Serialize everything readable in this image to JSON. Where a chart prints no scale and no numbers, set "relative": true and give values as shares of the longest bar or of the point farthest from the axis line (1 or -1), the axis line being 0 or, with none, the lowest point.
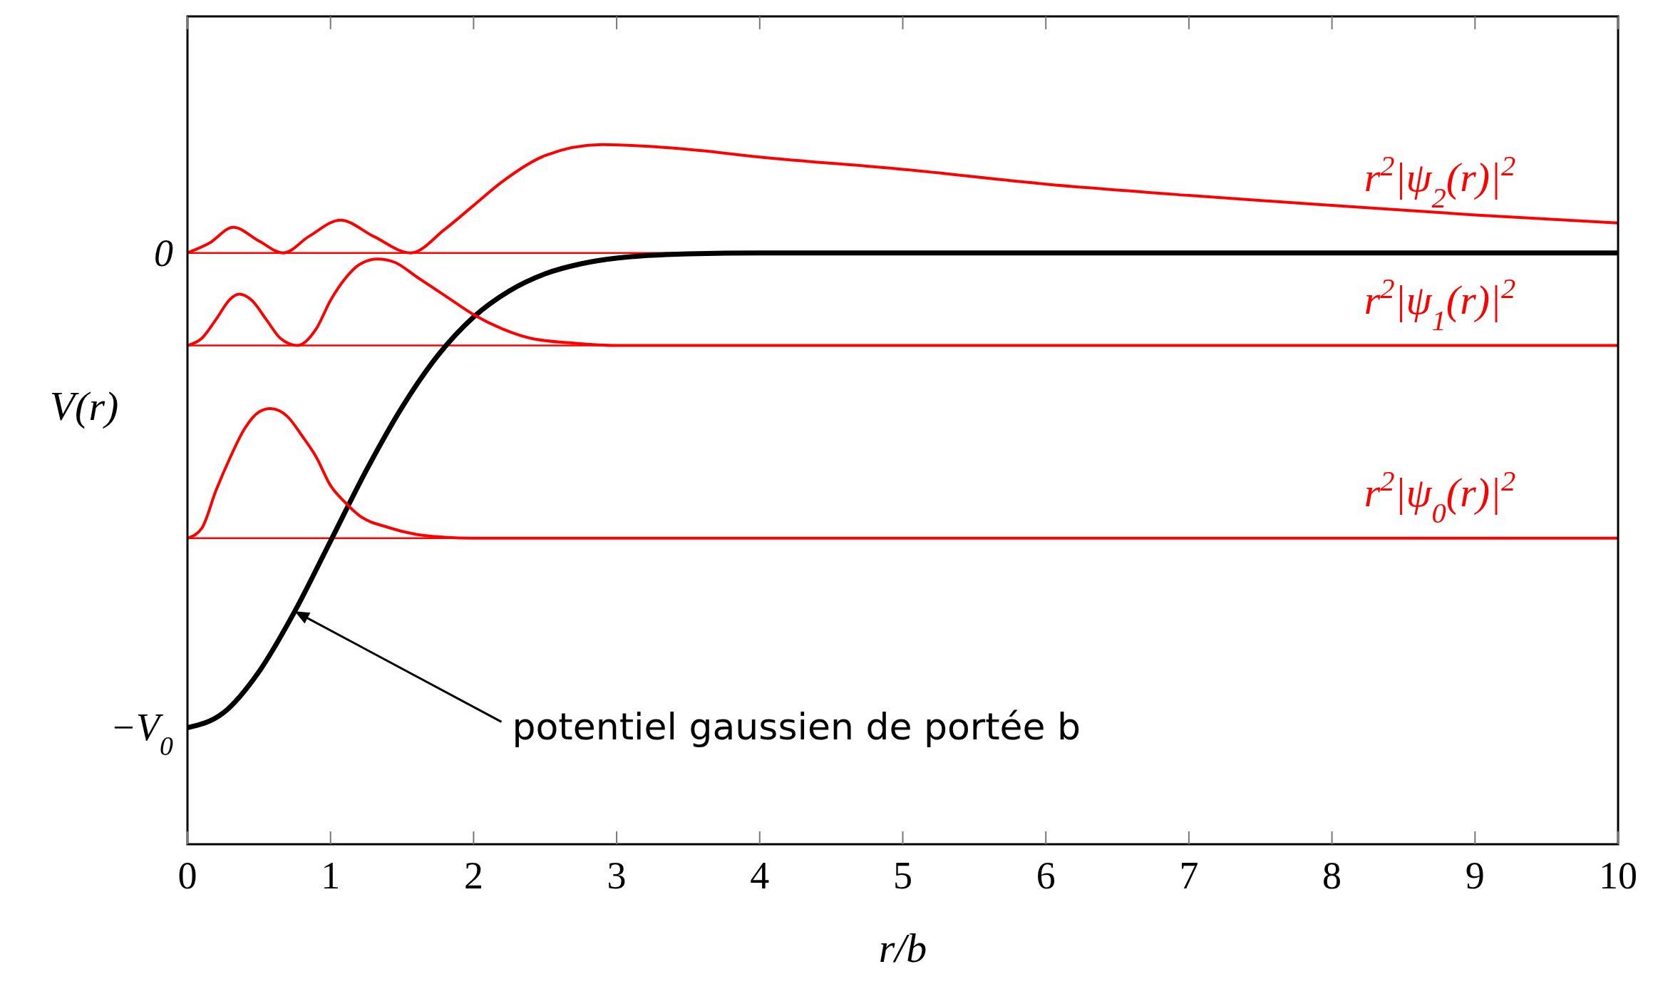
{
  "chart_data": {
    "type": "line",
    "xlabel": "r/b",
    "ylabel": "V(r)",
    "xlim": [
      0,
      10
    ],
    "relative": true,
    "xticks": [
      0,
      1,
      2,
      3,
      4,
      5,
      6,
      7,
      8,
      9,
      10
    ],
    "legend": false,
    "series": [
      {
        "color": "#000000",
        "x": [
          0,
          0.25,
          0.5,
          0.75,
          1,
          1.25,
          1.5,
          1.75,
          2,
          2.25,
          2.5,
          2.75,
          3,
          3.5,
          4,
          5,
          6,
          7,
          8,
          9,
          10
        ],
        "values": [
          -1,
          -0.969,
          -0.882,
          -0.755,
          -0.607,
          -0.458,
          -0.325,
          -0.216,
          -0.135,
          -0.08,
          -0.044,
          -0.023,
          -0.011,
          -0.002,
          0,
          0,
          0,
          0,
          0,
          0,
          0
        ]
      },
      {
        "name": "r$^{2}$|ψ$_{0}$(r)|$^{2}$",
        "color": "#ff0000",
        "x": [
          0,
          0.1,
          0.2,
          0.3,
          0.4,
          0.5,
          0.58,
          0.7,
          0.8,
          0.9,
          1,
          1.1,
          1.2,
          1.4,
          1.6,
          1.8,
          2,
          3,
          5,
          10
        ],
        "values": [
          -0.601,
          -0.58,
          -0.5,
          -0.43,
          -0.37,
          -0.335,
          -0.328,
          -0.345,
          -0.385,
          -0.43,
          -0.49,
          -0.525,
          -0.553,
          -0.578,
          -0.593,
          -0.599,
          -0.601,
          -0.601,
          -0.601,
          -0.601
        ]
      },
      {
        "name": "r$^{2}$|ψ$_{1}$(r)|$^{2}$",
        "color": "#ff0000",
        "x": [
          0,
          0.1,
          0.2,
          0.3,
          0.36,
          0.45,
          0.55,
          0.65,
          0.77,
          0.9,
          1,
          1.1,
          1.2,
          1.33,
          1.45,
          1.6,
          1.8,
          2,
          2.2,
          2.4,
          2.7,
          3,
          5,
          10
        ],
        "values": [
          -0.195,
          -0.18,
          -0.14,
          -0.097,
          -0.087,
          -0.1,
          -0.14,
          -0.18,
          -0.195,
          -0.16,
          -0.1,
          -0.055,
          -0.025,
          -0.013,
          -0.02,
          -0.05,
          -0.09,
          -0.13,
          -0.16,
          -0.18,
          -0.19,
          -0.195,
          -0.195,
          -0.195
        ]
      },
      {
        "name": "r$^{2}$|ψ$_{2}$(r)|$^{2}$",
        "color": "#ff0000",
        "x": [
          0,
          0.15,
          0.32,
          0.5,
          0.67,
          0.85,
          1.07,
          1.3,
          1.56,
          1.8,
          2,
          2.2,
          2.5,
          2.9,
          3.5,
          4,
          5,
          6,
          7,
          8,
          9,
          10
        ],
        "values": [
          0,
          0.02,
          0.054,
          0.025,
          0,
          0.035,
          0.069,
          0.035,
          0,
          0.05,
          0.1,
          0.15,
          0.205,
          0.228,
          0.218,
          0.202,
          0.176,
          0.145,
          0.121,
          0.1,
          0.08,
          0.063
        ]
      }
    ],
    "ref_lines": [
      {
        "axis": "y",
        "value": 0,
        "color": "#ff0000"
      },
      {
        "axis": "y",
        "value": -0.195,
        "color": "#ff0000"
      },
      {
        "axis": "y",
        "value": -0.601,
        "color": "#ff0000"
      }
    ],
    "annotations": [
      {
        "text": "0",
        "x": 0,
        "y": 0
      },
      {
        "text": "−V$_{0}$",
        "x": 0,
        "y": -1
      },
      "potentiel gaussien de portée b"
    ]
  }
}
